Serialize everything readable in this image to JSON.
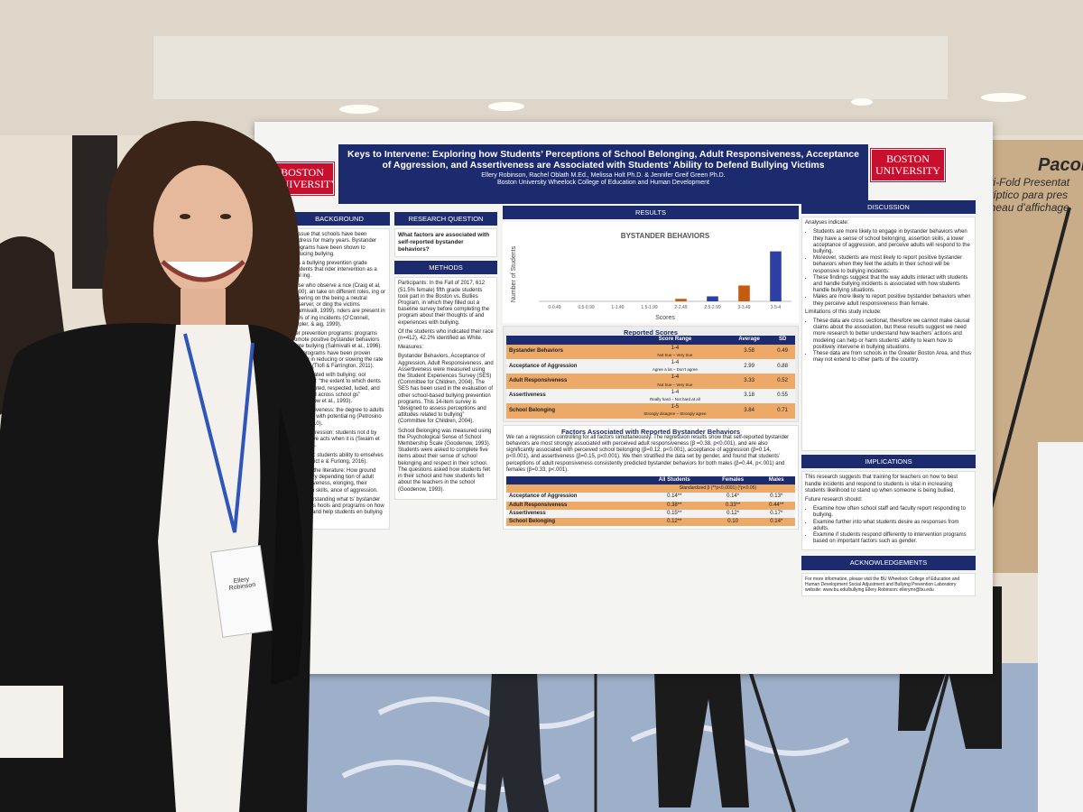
{
  "poster": {
    "logo_left": "BOSTON UNIVERSITY",
    "logo_right": "BOSTON UNIVERSITY",
    "title": "Keys to Intervene: Exploring how Students’ Perceptions of School Belonging, Adult Responsiveness, Acceptance of Aggression, and Assertiveness are Associated with Students’ Ability to Defend Bullying Victims",
    "authors": "Ellery Robinson, Rachel Oblath M.Ed., Melissa Holt Ph.D. & Jennifer Greif Green Ph.D.",
    "affiliation": "Boston University Wheelock College of Education and Human Development",
    "background": {
      "heading": "BACKGROUND",
      "paragraphs": [
        "n issue that schools have been address for many years. Bystander programs have been shown to reducing bullying.",
        "s is a bullying prevention grade students that nder intervention as a tool ing.",
        "hose who observe a nce (Craig et al, 2000). an take on different roles, ing or cheering on the being a neutral observer, or ding the victims (Salmivalli, 1999). nders are present in 80% of ing incidents (O’Connell, Pepler, & aig, 1999).",
        "der prevention programs: programs romote positive bystander behaviors igate bullying (Salmivalli et al., 1996). ese programs have been proven cessful in reducing or slowing the rate bullying (Ttofi & Farrington, 2011).",
        "rs associated with bullying: ool belonging: “the extent to which dents feel accepted, respected, luded, and supported across school gs” (Goodenow et al., 1993).",
        "t responsiveness: the degree to adults intervene with potential ng (Petrosino et al., 2010).",
        "on of aggression: students not d by aggressive acts when it is (Swaim et al., 2004).",
        "ess skills: students ability to emselves in a conflict e & Furlong, 2016).",
        "ing from the literature: How ground might vary depending tion of adult responsiveness, elonging, their assertion skills, ance of aggression.",
        "rs: Understanding what ts’ bystander behaviors hools and programs on how bullying and help students en bullying occurs."
      ]
    },
    "research_question": {
      "heading": "RESEARCH QUESTION",
      "text": "What factors are associated with self-reported bystander behaviors?"
    },
    "methods": {
      "heading": "METHODS",
      "paragraphs": [
        "Participants: In the Fall of 2017, 612 (51.5% female) fifth grade students took part in the Boston vs. Bullies Program, in which they filled out a baseline survey before completing the program about their thoughts of and experiences with bullying.",
        "Of the students who indicated their race (n=412), 42.2% identified as White.",
        "Measures:",
        "Bystander Behaviors, Acceptance of Aggression, Adult Responsiveness, and Assertiveness were measured using the Student Experiences Survey (SES) (Committee for Children, 2004). The SES has been used in the evaluation of other school-based bullying prevention programs. This 14-item survey is “designed to assess perceptions and attitudes related to bullying” (Committee for Children, 2004).",
        "School Belonging was measured using the Psychological Sense of School Membership Scale (Goodenow, 1993). Students were asked to complete five items about their sense of school belonging and respect in their school. The questions asked how students felt in their school and how students felt about the teachers in the school (Goodenow, 1993)."
      ]
    },
    "results": {
      "heading": "RESULTS",
      "reported_scores": {
        "title": "Reported Scores",
        "header": [
          "Score Range",
          "Average",
          "SD"
        ],
        "rows": [
          [
            "Bystander Behaviors",
            "1-4",
            "Not true – Very true",
            "3.58",
            "0.49"
          ],
          [
            "Acceptance of Aggression",
            "1-4",
            "Agree a lot – Don’t agree",
            "2.99",
            "0.88"
          ],
          [
            "Adult Responsiveness",
            "1-4",
            "Not true – Very true",
            "3.33",
            "0.52"
          ],
          [
            "Assertiveness",
            "1-4",
            "Really hard – Not hard at all",
            "3.18",
            "0.55"
          ],
          [
            "School Belonging",
            "1-5",
            "Strongly disagree – Strongly agree",
            "3.84",
            "0.71"
          ]
        ]
      },
      "factors": {
        "title": "Factors Associated with Reported Bystander Behaviors",
        "text": "We ran a regression controlling for all factors simultaneously. The regression results show that self-reported bystander behaviors are most strongly associated with perceived adult responsiveness (β =0.38, p<0.001), and are also significantly associated with perceived school belonging (β=0.12, p<0.001), acceptance of aggression (β=0.14, p<0.001), and assertiveness (β=0.15, p<0.001). We then stratified the data set by gender, and found that students’ perceptions of adult responsiveness consistently predicted bystander behaviors for both males (β=0.44, p<.001) and females (β=0.33, p<.001).",
        "header": [
          "All Students",
          "Females",
          "Males"
        ],
        "subheader": "Standardized β (**p<0.0001) (*p<0.05)",
        "rows": [
          [
            "Acceptance of Aggression",
            "0.14**",
            "0.14*",
            "0.13*"
          ],
          [
            "Adult Responsiveness",
            "0.38**",
            "0.33**",
            "0.44**"
          ],
          [
            "Assertiveness",
            "0.15**",
            "0.12*",
            "0.17*"
          ],
          [
            "School Belonging",
            "0.12**",
            "0.10",
            "0.14*"
          ]
        ]
      }
    },
    "discussion": {
      "heading": "DISCUSSION",
      "intro": "Analyses indicate:",
      "items": [
        "Students are more likely to engage in bystander behaviors when they have a sense of school belonging, assertion skills, a lower acceptance of aggression, and perceive adults will respond to the bullying.",
        "Moreover, students are most likely to report positive bystander behaviors when they feel the adults in their school will be responsive to bullying incidents:",
        "These findings suggest that the way adults interact with students and handle bullying incidents is associated with how students handle bullying situations.",
        "Males are more likely to report positive bystander behaviors when they perceive adult responsiveness than female."
      ],
      "limitations_intro": "Limitations of this study include:",
      "limitations": [
        "These data are cross sectional, therefore we cannot make causal claims about the association, but these results suggest we need more research to better understand how teachers’ actions and modeling can help or harm students’ ability to learn how to positively intervene in bullying situations.",
        "These data are from schools in the Greater Boston Area, and thus may not extend to other parts of the country."
      ]
    },
    "implications": {
      "heading": "IMPLICATIONS",
      "text": "This research suggests that training for teachers on how to best handle incidents and respond to students is vital in increasing students likelihood to stand up when someone is being bullied.",
      "future_intro": "Future research should:",
      "items": [
        "Examine how often school staff and faculty report responding to bullying.",
        "Examine further into what students desire as responses from adults.",
        "Examine if students respond differently to intervention programs based on important factors such as gender."
      ]
    },
    "acknowledgements": {
      "heading": "ACKNOWLEDGEMENTS",
      "text": "For more information, please visit the BU Wheelock College of Education and Human Development Social Adjustment and Bullying Prevention Laboratory website: www.bu.edu/bullying Ellery Robinson: ellerymr@bu.edu"
    }
  },
  "chart_data": {
    "type": "bar",
    "title": "BYSTANDER BEHAVIORS",
    "x_label": "Scores",
    "y_label": "Number of Students",
    "categories": [
      "0-0.49",
      "0.5-0.99",
      "1-1.49",
      "1.5-1.99",
      "2-2.49",
      "2.5-2.99",
      "3-3.49",
      "3.5-4"
    ],
    "values": [
      0,
      0,
      0,
      0,
      3,
      6,
      19,
      60
    ],
    "colors": [
      "#c55a11",
      "#2e3fa3",
      "#c55a11",
      "#2e3fa3",
      "#c55a11",
      "#2e3fa3",
      "#c55a11",
      "#2e3fa3"
    ],
    "ylim": [
      0,
      65
    ]
  },
  "badge": "Ellery Robinson",
  "sign": {
    "brand": "Pacon",
    "lines": [
      "Tri-Fold Presentat",
      "Tríptico para pres",
      "nneau d’affichage"
    ]
  }
}
